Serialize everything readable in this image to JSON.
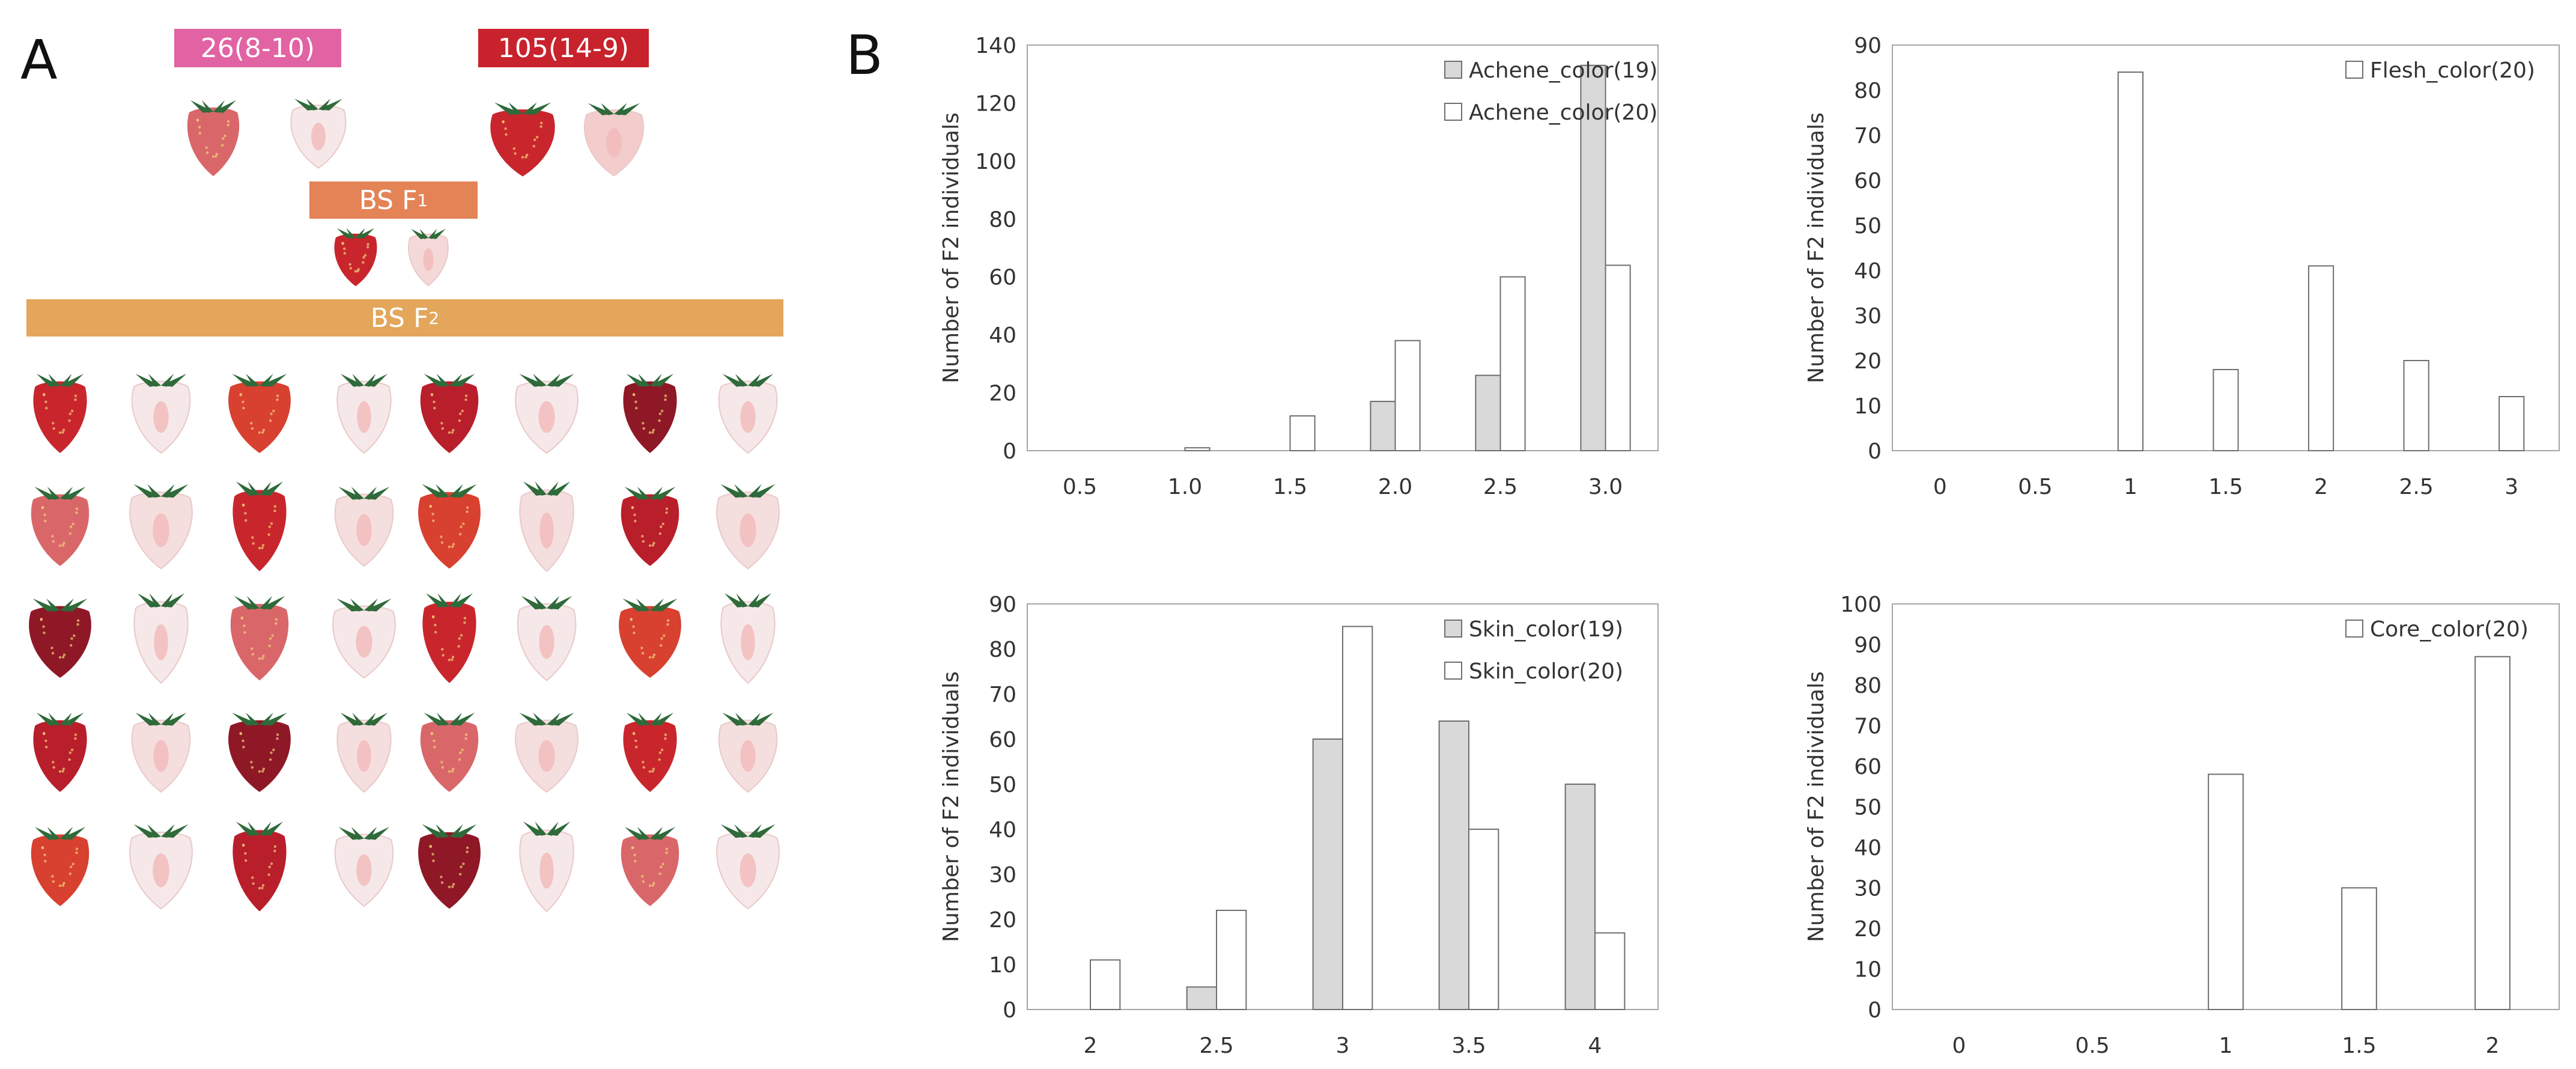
{
  "panel_a": {
    "letter": "A",
    "parent1_label": "26(8-10)",
    "parent2_label": "105(14-9)",
    "f1_label_main": "BS F",
    "f1_label_sub": "1",
    "f2_label_main": "BS F",
    "f2_label_sub": "2",
    "colors": {
      "parent1": "#e163a3",
      "parent2": "#c8222c",
      "f1": "#e38356",
      "f2": "#e3a65a",
      "fruit_red": "#c8262c",
      "fruit_dark": "#8e1826",
      "fruit_pink": "#d9676a",
      "fruit_white": "#f6e8e8",
      "leaf": "#2f6a3a"
    },
    "f2_grid": {
      "rows": 5,
      "cols": 8
    }
  },
  "panel_b": {
    "letter": "B"
  },
  "chart_data": [
    {
      "id": "achene",
      "type": "bar",
      "categories": [
        "0.5",
        "1.0",
        "1.5",
        "2.0",
        "2.5",
        "3.0"
      ],
      "series": [
        {
          "name": "Achene_color(19)",
          "color": "#d9d9d9",
          "values": [
            0,
            0,
            0,
            17,
            26,
            133
          ]
        },
        {
          "name": "Achene_color(20)",
          "color": "#ffffff",
          "values": [
            0,
            1,
            12,
            38,
            60,
            64
          ]
        }
      ],
      "ylabel": "Number of F2 individuals",
      "ylim": [
        0,
        140
      ],
      "yticks": [
        "0",
        "20",
        "40",
        "60",
        "80",
        "100",
        "120",
        "140"
      ],
      "grid": false,
      "legend": "top-right"
    },
    {
      "id": "flesh",
      "type": "bar",
      "categories": [
        "0",
        "0.5",
        "1",
        "1.5",
        "2",
        "2.5",
        "3"
      ],
      "series": [
        {
          "name": "Flesh_color(20)",
          "color": "#ffffff",
          "values": [
            0,
            0,
            84,
            18,
            41,
            20,
            12
          ]
        }
      ],
      "ylabel": "Number of F2 individuals",
      "ylim": [
        0,
        90
      ],
      "yticks": [
        "0",
        "10",
        "20",
        "30",
        "40",
        "50",
        "60",
        "70",
        "80",
        "90"
      ],
      "grid": false,
      "legend": "top-right"
    },
    {
      "id": "skin",
      "type": "bar",
      "categories": [
        "2",
        "2.5",
        "3",
        "3.5",
        "4"
      ],
      "series": [
        {
          "name": "Skin_color(19)",
          "color": "#d9d9d9",
          "values": [
            0,
            5,
            60,
            64,
            50
          ]
        },
        {
          "name": "Skin_color(20)",
          "color": "#ffffff",
          "values": [
            11,
            22,
            85,
            40,
            17
          ]
        }
      ],
      "ylabel": "Number of F2 individuals",
      "ylim": [
        0,
        90
      ],
      "yticks": [
        "0",
        "10",
        "20",
        "30",
        "40",
        "50",
        "60",
        "70",
        "80",
        "90"
      ],
      "grid": false,
      "legend": "top-right"
    },
    {
      "id": "core",
      "type": "bar",
      "categories": [
        "0",
        "0.5",
        "1",
        "1.5",
        "2"
      ],
      "series": [
        {
          "name": "Core_color(20)",
          "color": "#ffffff",
          "values": [
            0,
            0,
            58,
            30,
            87
          ]
        }
      ],
      "ylabel": "Number of F2 individuals",
      "ylim": [
        0,
        100
      ],
      "yticks": [
        "0",
        "10",
        "20",
        "30",
        "40",
        "50",
        "60",
        "70",
        "80",
        "90",
        "100"
      ],
      "grid": false,
      "legend": "top-right"
    }
  ]
}
